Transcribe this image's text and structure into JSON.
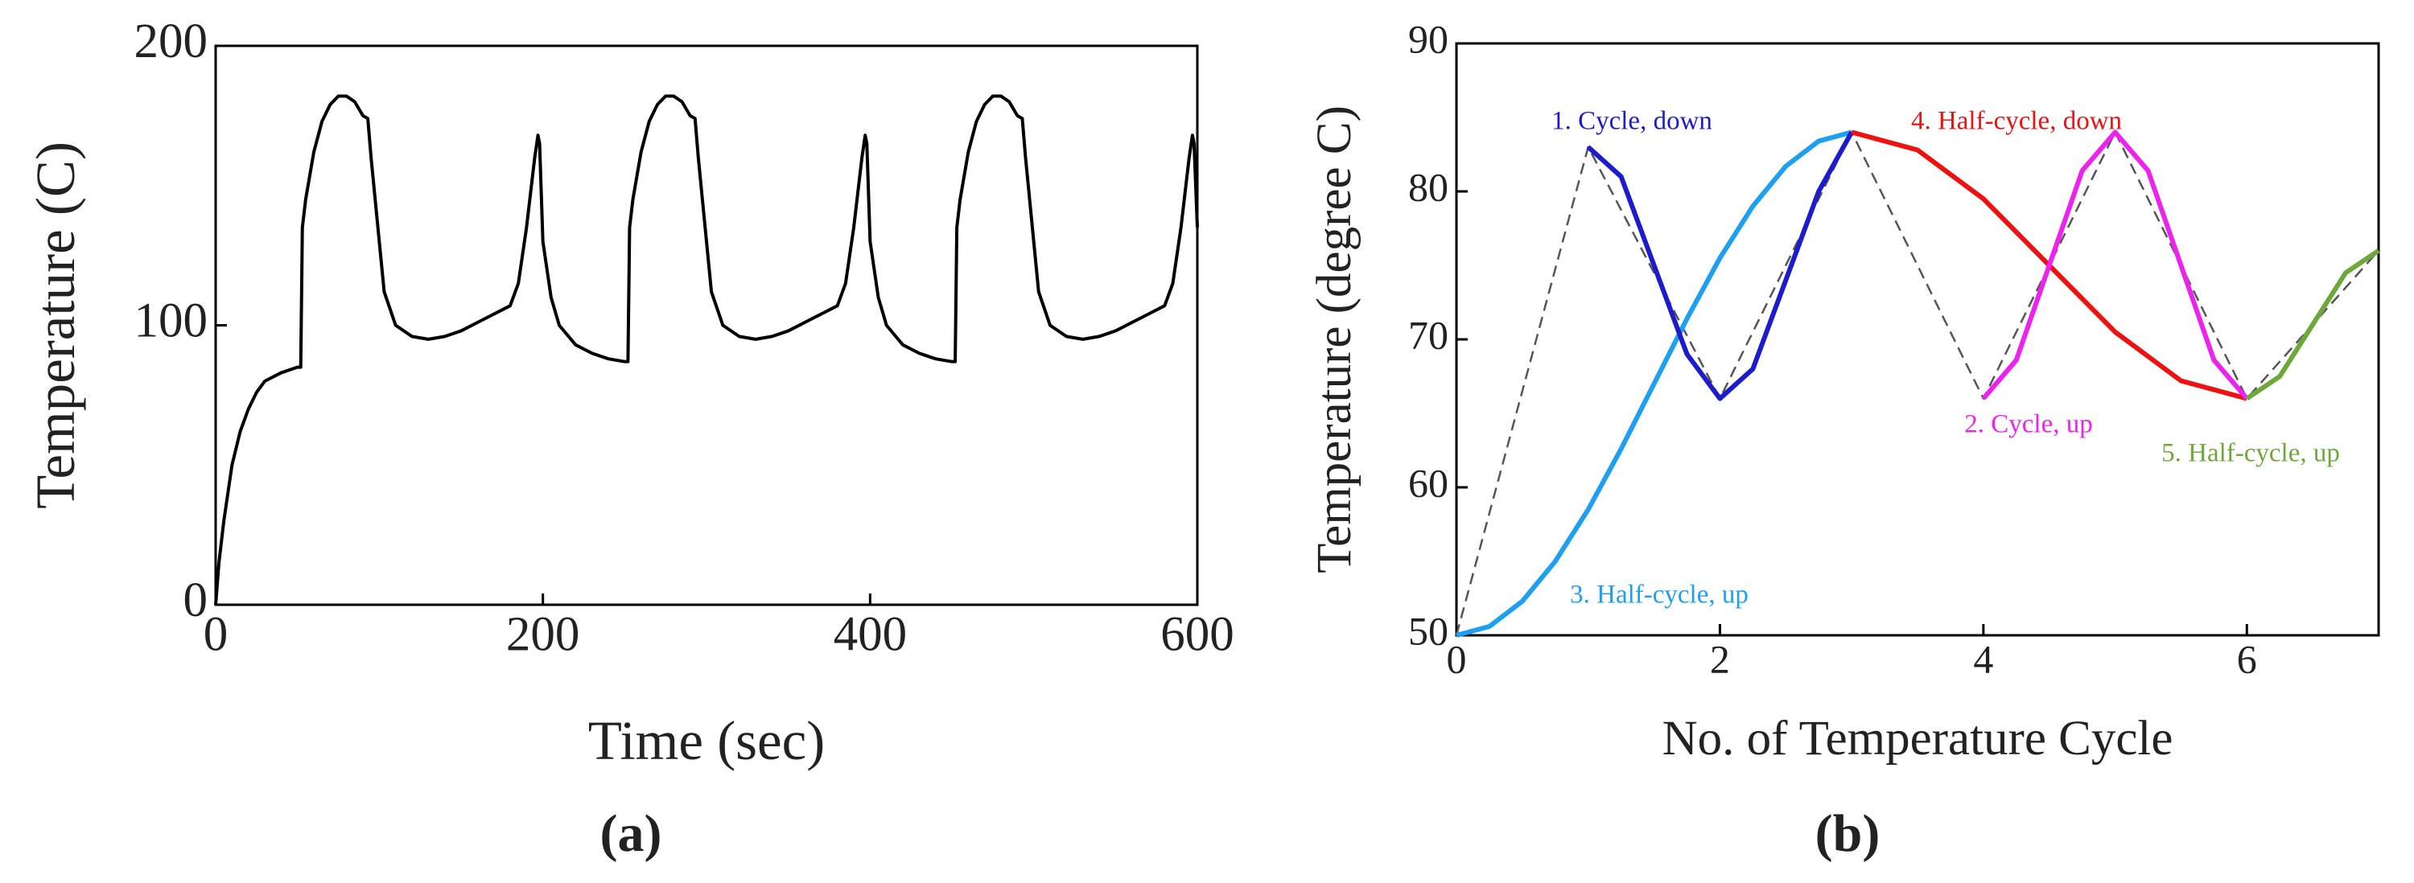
{
  "chart_data": [
    {
      "type": "line",
      "caption": "(a)",
      "xlabel": "Time (sec)",
      "ylabel": "Temperature (C)",
      "xlim": [
        0,
        600
      ],
      "ylim": [
        0,
        200
      ],
      "xticks": [
        0,
        200,
        400,
        600
      ],
      "yticks": [
        0,
        100,
        200
      ],
      "series": [
        {
          "color": "#000000",
          "x": [
            0,
            2,
            5,
            10,
            15,
            20,
            25,
            30,
            40,
            50,
            52,
            53,
            55,
            60,
            65,
            70,
            75,
            80,
            85,
            90,
            93,
            95,
            100,
            103,
            110,
            120,
            130,
            140,
            150,
            160,
            170,
            180,
            185,
            190,
            195,
            197,
            198,
            200,
            205,
            210,
            220,
            230,
            240,
            250,
            252,
            253,
            255,
            260,
            265,
            270,
            275,
            280,
            285,
            290,
            293,
            295,
            300,
            303,
            310,
            320,
            330,
            340,
            350,
            360,
            370,
            380,
            385,
            390,
            395,
            397,
            398,
            400,
            405,
            410,
            420,
            430,
            440,
            450,
            452,
            453,
            455,
            460,
            465,
            470,
            475,
            480,
            485,
            490,
            493,
            495,
            500,
            503,
            510,
            520,
            530,
            540,
            550,
            560,
            570,
            580,
            585,
            590,
            595,
            597,
            598,
            600
          ],
          "values": [
            0,
            15,
            30,
            50,
            62,
            70,
            76,
            80,
            83,
            85,
            85,
            135,
            145,
            162,
            173,
            179,
            182,
            182,
            180,
            175,
            174,
            160,
            130,
            112,
            100,
            96,
            95,
            96,
            98,
            101,
            104,
            107,
            115,
            135,
            160,
            168,
            165,
            130,
            110,
            100,
            93,
            90,
            88,
            87,
            87,
            135,
            145,
            162,
            173,
            179,
            182,
            182,
            180,
            175,
            174,
            160,
            130,
            112,
            100,
            96,
            95,
            96,
            98,
            101,
            104,
            107,
            115,
            135,
            160,
            168,
            165,
            130,
            110,
            100,
            93,
            90,
            88,
            87,
            87,
            135,
            145,
            162,
            173,
            179,
            182,
            182,
            180,
            175,
            174,
            160,
            130,
            112,
            100,
            96,
            95,
            96,
            98,
            101,
            104,
            107,
            115,
            135,
            160,
            168,
            165,
            135
          ]
        }
      ]
    },
    {
      "type": "line",
      "caption": "(b)",
      "xlabel": "No. of Temperature Cycle",
      "ylabel": "Temperature (degree C)",
      "xlim": [
        0,
        7
      ],
      "ylim": [
        50,
        90
      ],
      "xticks": [
        0,
        2,
        4,
        6
      ],
      "yticks": [
        50,
        60,
        70,
        80,
        90
      ],
      "series": [
        {
          "color": "#555555",
          "dashed": true,
          "x": [
            0,
            1,
            2,
            3,
            4,
            5,
            6,
            7
          ],
          "values": [
            50,
            83,
            66,
            84,
            66,
            84,
            66,
            76
          ]
        },
        {
          "name": "3. Half-cycle, up",
          "color": "#1ea0f0",
          "x": [
            0,
            0.25,
            0.5,
            0.75,
            1,
            1.25,
            1.5,
            1.75,
            2,
            2.25,
            2.5,
            2.75,
            3
          ],
          "values": [
            50,
            50.6,
            52.3,
            55,
            58.5,
            62.6,
            67,
            71.4,
            75.5,
            79,
            81.7,
            83.4,
            84
          ]
        },
        {
          "name": "1. Cycle, down",
          "color": "#1c1ccc",
          "x": [
            1,
            1.25,
            1.5,
            1.75,
            2,
            2.25,
            2.5,
            2.75,
            3
          ],
          "values": [
            83,
            81,
            75,
            69,
            66,
            68,
            74,
            80,
            84
          ]
        },
        {
          "name": "4. Half-cycle, down",
          "color": "#ee1111",
          "x": [
            3,
            3.5,
            4,
            4.5,
            5,
            5.5,
            6
          ],
          "values": [
            84,
            82.8,
            79.5,
            75,
            70.5,
            67.2,
            66
          ]
        },
        {
          "name": "2. Cycle, up",
          "color": "#ee22ee",
          "x": [
            4,
            4.25,
            4.5,
            4.75,
            5,
            5.25,
            5.5,
            5.75,
            6
          ],
          "values": [
            66,
            68.6,
            75,
            81.4,
            84,
            81.4,
            75,
            68.6,
            66
          ]
        },
        {
          "name": "5. Half-cycle, up",
          "color": "#6fa83a",
          "x": [
            6,
            6.25,
            6.5,
            6.75,
            7
          ],
          "values": [
            66,
            67.5,
            71,
            74.5,
            76
          ]
        }
      ]
    }
  ]
}
